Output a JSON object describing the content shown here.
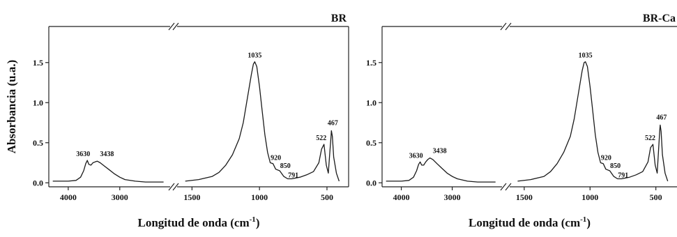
{
  "chart_data": [
    {
      "type": "line",
      "title": "BR",
      "ylabel": "Absorbancia (u.a.)",
      "xlabel": "Longitud de onda (cm",
      "xlabel_sup": "-1",
      "xlabel_close": ")",
      "ylim": [
        -0.05,
        1.95
      ],
      "yticks": [
        0.0,
        0.5,
        1.0,
        1.5
      ],
      "ytick_labels": [
        "0.0",
        "0.5",
        "1.0",
        "1.5"
      ],
      "segments": [
        {
          "xlim": [
            4350,
            2050
          ],
          "xticks": [
            4000,
            3000
          ],
          "xtick_labels": [
            "4000",
            "3000"
          ]
        },
        {
          "xlim": [
            1600,
            350
          ],
          "xticks": [
            1500,
            1000,
            500
          ],
          "xtick_labels": [
            "1500",
            "1000",
            "500"
          ]
        }
      ],
      "series": [
        {
          "x": [
            4300,
            4000,
            3850,
            3760,
            3700,
            3660,
            3630,
            3600,
            3560,
            3520,
            3480,
            3438,
            3380,
            3300,
            3200,
            3100,
            3000,
            2900,
            2700,
            2500,
            2300,
            2150,
            1550,
            1450,
            1350,
            1300,
            1250,
            1200,
            1150,
            1120,
            1090,
            1060,
            1045,
            1035,
            1020,
            1000,
            980,
            960,
            940,
            920,
            900,
            880,
            850,
            820,
            791,
            760,
            700,
            650,
            600,
            560,
            540,
            522,
            505,
            490,
            480,
            470,
            467,
            460,
            450,
            430,
            410
          ],
          "y": [
            0.02,
            0.02,
            0.03,
            0.07,
            0.15,
            0.24,
            0.28,
            0.23,
            0.22,
            0.25,
            0.26,
            0.27,
            0.25,
            0.21,
            0.16,
            0.11,
            0.07,
            0.04,
            0.02,
            0.01,
            0.01,
            0.01,
            0.02,
            0.04,
            0.08,
            0.13,
            0.22,
            0.35,
            0.55,
            0.75,
            1.05,
            1.35,
            1.48,
            1.51,
            1.45,
            1.2,
            0.9,
            0.6,
            0.38,
            0.25,
            0.24,
            0.17,
            0.15,
            0.08,
            0.05,
            0.05,
            0.07,
            0.1,
            0.14,
            0.25,
            0.42,
            0.48,
            0.22,
            0.12,
            0.35,
            0.58,
            0.65,
            0.58,
            0.32,
            0.12,
            0.02
          ]
        }
      ],
      "annotations": [
        {
          "text": "3630",
          "x": 3630,
          "y": 0.28
        },
        {
          "text": "3438",
          "x": 3438,
          "y": 0.27
        },
        {
          "text": "1035",
          "x": 1035,
          "y": 1.51
        },
        {
          "text": "920",
          "x": 920,
          "y": 0.25
        },
        {
          "text": "850",
          "x": 850,
          "y": 0.15
        },
        {
          "text": "791",
          "x": 791,
          "y": 0.05
        },
        {
          "text": "522",
          "x": 522,
          "y": 0.48
        },
        {
          "text": "467",
          "x": 467,
          "y": 0.65
        }
      ]
    },
    {
      "type": "line",
      "title": "BR-Ca",
      "ylabel": "",
      "xlabel": "Longitud de onda (cm",
      "xlabel_sup": "-1",
      "xlabel_close": ")",
      "ylim": [
        -0.05,
        1.95
      ],
      "yticks": [
        0.0,
        0.5,
        1.0,
        1.5
      ],
      "ytick_labels": [
        "0.0",
        "0.5",
        "1.0",
        "1.5"
      ],
      "segments": [
        {
          "xlim": [
            4350,
            2050
          ],
          "xticks": [
            4000,
            3000
          ],
          "xtick_labels": [
            "4000",
            "3000"
          ]
        },
        {
          "xlim": [
            1600,
            350
          ],
          "xticks": [
            1500,
            1000,
            500
          ],
          "xtick_labels": [
            "1500",
            "1000",
            "500"
          ]
        }
      ],
      "series": [
        {
          "x": [
            4300,
            4000,
            3850,
            3760,
            3700,
            3660,
            3630,
            3600,
            3560,
            3520,
            3480,
            3438,
            3380,
            3300,
            3200,
            3100,
            3000,
            2900,
            2700,
            2500,
            2300,
            2150,
            1550,
            1450,
            1350,
            1300,
            1250,
            1200,
            1150,
            1120,
            1090,
            1060,
            1045,
            1035,
            1020,
            1000,
            980,
            960,
            940,
            920,
            900,
            880,
            850,
            820,
            791,
            760,
            700,
            650,
            600,
            560,
            540,
            522,
            505,
            490,
            480,
            470,
            467,
            460,
            450,
            430,
            410
          ],
          "y": [
            0.02,
            0.02,
            0.03,
            0.07,
            0.15,
            0.23,
            0.26,
            0.22,
            0.22,
            0.26,
            0.29,
            0.31,
            0.29,
            0.24,
            0.18,
            0.12,
            0.08,
            0.05,
            0.02,
            0.01,
            0.01,
            0.01,
            0.02,
            0.04,
            0.08,
            0.14,
            0.24,
            0.38,
            0.58,
            0.8,
            1.1,
            1.4,
            1.5,
            1.51,
            1.45,
            1.2,
            0.9,
            0.6,
            0.38,
            0.25,
            0.24,
            0.17,
            0.15,
            0.08,
            0.05,
            0.05,
            0.07,
            0.1,
            0.14,
            0.26,
            0.44,
            0.48,
            0.22,
            0.12,
            0.4,
            0.66,
            0.72,
            0.64,
            0.35,
            0.12,
            0.02
          ]
        }
      ],
      "annotations": [
        {
          "text": "3630",
          "x": 3630,
          "y": 0.26
        },
        {
          "text": "3438",
          "x": 3438,
          "y": 0.31
        },
        {
          "text": "1035",
          "x": 1035,
          "y": 1.51
        },
        {
          "text": "920",
          "x": 920,
          "y": 0.25
        },
        {
          "text": "850",
          "x": 850,
          "y": 0.15
        },
        {
          "text": "791",
          "x": 791,
          "y": 0.05
        },
        {
          "text": "522",
          "x": 522,
          "y": 0.48
        },
        {
          "text": "467",
          "x": 467,
          "y": 0.72
        }
      ]
    }
  ]
}
